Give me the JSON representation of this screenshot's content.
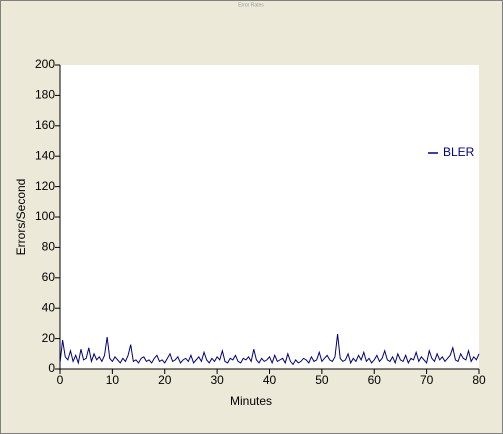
{
  "chart_data": {
    "type": "line",
    "title": "Error Rates",
    "xlabel": "Minutes",
    "ylabel": "Errors/Second",
    "xlim": [
      0,
      80
    ],
    "xticks": [
      0,
      10,
      20,
      30,
      40,
      50,
      60,
      70,
      80
    ],
    "ylim": [
      0,
      200
    ],
    "yticks": [
      0,
      20,
      40,
      60,
      80,
      100,
      120,
      140,
      160,
      180,
      200
    ],
    "legend": "right",
    "x": [
      0,
      0.5,
      1,
      1.5,
      2,
      2.5,
      3,
      3.5,
      4,
      4.5,
      5,
      5.5,
      6,
      6.5,
      7,
      7.5,
      8,
      8.5,
      9,
      9.5,
      10,
      10.5,
      11,
      11.5,
      12,
      12.5,
      13,
      13.5,
      14,
      14.5,
      15,
      15.5,
      16,
      16.5,
      17,
      17.5,
      18,
      18.5,
      19,
      19.5,
      20,
      20.5,
      21,
      21.5,
      22,
      22.5,
      23,
      23.5,
      24,
      24.5,
      25,
      25.5,
      26,
      26.5,
      27,
      27.5,
      28,
      28.5,
      29,
      29.5,
      30,
      30.5,
      31,
      31.5,
      32,
      32.5,
      33,
      33.5,
      34,
      34.5,
      35,
      35.5,
      36,
      36.5,
      37,
      37.5,
      38,
      38.5,
      39,
      39.5,
      40,
      40.5,
      41,
      41.5,
      42,
      42.5,
      43,
      43.5,
      44,
      44.5,
      45,
      45.5,
      46,
      46.5,
      47,
      47.5,
      48,
      48.5,
      49,
      49.5,
      50,
      50.5,
      51,
      51.5,
      52,
      52.5,
      53,
      53.5,
      54,
      54.5,
      55,
      55.5,
      56,
      56.5,
      57,
      57.5,
      58,
      58.5,
      59,
      59.5,
      60,
      60.5,
      61,
      61.5,
      62,
      62.5,
      63,
      63.5,
      64,
      64.5,
      65,
      65.5,
      66,
      66.5,
      67,
      67.5,
      68,
      68.5,
      69,
      69.5,
      70,
      70.5,
      71,
      71.5,
      72,
      72.5,
      73,
      73.5,
      74,
      74.5,
      75,
      75.5,
      76,
      76.5,
      77,
      77.5,
      78,
      78.5,
      79,
      79.5,
      80
    ],
    "series": [
      {
        "name": "BLER",
        "color": "#000080",
        "values": [
          4,
          19,
          8,
          6,
          12,
          5,
          9,
          4,
          13,
          6,
          7,
          14,
          5,
          10,
          6,
          8,
          5,
          9,
          21,
          7,
          5,
          8,
          6,
          4,
          7,
          5,
          9,
          16,
          5,
          6,
          4,
          7,
          8,
          5,
          6,
          4,
          7,
          9,
          5,
          6,
          4,
          7,
          10,
          5,
          6,
          8,
          4,
          6,
          7,
          5,
          9,
          4,
          6,
          8,
          5,
          11,
          6,
          4,
          7,
          5,
          8,
          6,
          12,
          5,
          4,
          7,
          6,
          9,
          5,
          4,
          7,
          6,
          8,
          5,
          13,
          6,
          4,
          7,
          5,
          6,
          8,
          4,
          9,
          5,
          6,
          7,
          4,
          10,
          5,
          3,
          6,
          4,
          5,
          7,
          6,
          4,
          8,
          5,
          6,
          11,
          5,
          7,
          9,
          6,
          5,
          8,
          23,
          7,
          5,
          6,
          10,
          4,
          7,
          5,
          9,
          6,
          11,
          5,
          7,
          4,
          6,
          9,
          5,
          7,
          12,
          6,
          5,
          8,
          4,
          10,
          6,
          5,
          9,
          4,
          7,
          6,
          11,
          5,
          8,
          6,
          4,
          12,
          7,
          5,
          10,
          6,
          8,
          5,
          7,
          9,
          14,
          6,
          5,
          10,
          7,
          6,
          12,
          5,
          8,
          6,
          10
        ]
      }
    ]
  }
}
